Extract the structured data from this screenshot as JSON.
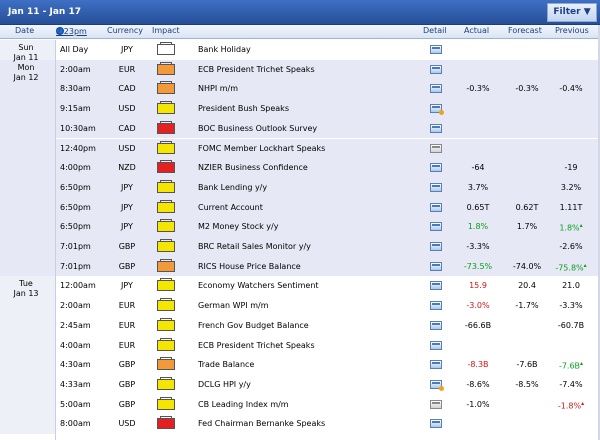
{
  "title": {
    "range": "Jan 11 - Jan 17",
    "filter_label": "Filter"
  },
  "header": {
    "date": "Date",
    "time": "2:23pm",
    "currency": "Currency",
    "impact": "Impact",
    "detail": "Detail",
    "actual": "Actual",
    "forecast": "Forecast",
    "previous": "Previous"
  },
  "days": [
    {
      "line1": "Sun",
      "line2": "Jan 11",
      "start": 0,
      "span": 1
    },
    {
      "line1": "Mon",
      "line2": "Jan 12",
      "start": 1,
      "span": 11
    },
    {
      "line1": "Tue",
      "line2": "Jan 13",
      "start": 12,
      "span": 8
    }
  ],
  "rows": [
    {
      "time": "All Day",
      "currency": "JPY",
      "impact": "none",
      "event": "Bank Holiday",
      "detail": "normal",
      "actual": "",
      "actual_color": "",
      "forecast": "",
      "previous": "",
      "previous_color": "",
      "previous_revised": false,
      "shade": false
    },
    {
      "time": "2:00am",
      "currency": "EUR",
      "impact": "medium",
      "event": "ECB President Trichet Speaks",
      "detail": "normal",
      "actual": "",
      "actual_color": "",
      "forecast": "",
      "previous": "",
      "previous_color": "",
      "previous_revised": false,
      "shade": true
    },
    {
      "time": "8:30am",
      "currency": "CAD",
      "impact": "medium",
      "event": "NHPI m/m",
      "detail": "normal",
      "actual": "-0.3%",
      "actual_color": "",
      "forecast": "-0.3%",
      "previous": "-0.4%",
      "previous_color": "",
      "previous_revised": false,
      "shade": true
    },
    {
      "time": "9:15am",
      "currency": "USD",
      "impact": "low",
      "event": "President Bush Speaks",
      "detail": "bell",
      "actual": "",
      "actual_color": "",
      "forecast": "",
      "previous": "",
      "previous_color": "",
      "previous_revised": false,
      "shade": true
    },
    {
      "time": "10:30am",
      "currency": "CAD",
      "impact": "high",
      "event": "BOC Business Outlook Survey",
      "detail": "normal",
      "actual": "",
      "actual_color": "",
      "forecast": "",
      "previous": "",
      "previous_color": "",
      "previous_revised": false,
      "shade": true
    },
    {
      "time": "12:40pm",
      "currency": "USD",
      "impact": "low",
      "event": "FOMC Member Lockhart Speaks",
      "detail": "gray",
      "actual": "",
      "actual_color": "",
      "forecast": "",
      "previous": "",
      "previous_color": "",
      "previous_revised": false,
      "shade": true
    },
    {
      "time": "4:00pm",
      "currency": "NZD",
      "impact": "high",
      "event": "NZIER Business Confidence",
      "detail": "normal",
      "actual": "-64",
      "actual_color": "",
      "forecast": "",
      "previous": "-19",
      "previous_color": "",
      "previous_revised": false,
      "shade": true
    },
    {
      "time": "6:50pm",
      "currency": "JPY",
      "impact": "low",
      "event": "Bank Lending y/y",
      "detail": "normal",
      "actual": "3.7%",
      "actual_color": "",
      "forecast": "",
      "previous": "3.2%",
      "previous_color": "",
      "previous_revised": false,
      "shade": true
    },
    {
      "time": "6:50pm",
      "currency": "JPY",
      "impact": "low",
      "event": "Current Account",
      "detail": "normal",
      "actual": "0.65T",
      "actual_color": "",
      "forecast": "0.62T",
      "previous": "1.11T",
      "previous_color": "",
      "previous_revised": false,
      "shade": true
    },
    {
      "time": "6:50pm",
      "currency": "JPY",
      "impact": "low",
      "event": "M2 Money Stock y/y",
      "detail": "normal",
      "actual": "1.8%",
      "actual_color": "up",
      "forecast": "1.7%",
      "previous": "1.8%",
      "previous_color": "up",
      "previous_revised": true,
      "shade": true
    },
    {
      "time": "7:01pm",
      "currency": "GBP",
      "impact": "low",
      "event": "BRC Retail Sales Monitor y/y",
      "detail": "normal",
      "actual": "-3.3%",
      "actual_color": "",
      "forecast": "",
      "previous": "-2.6%",
      "previous_color": "",
      "previous_revised": false,
      "shade": true
    },
    {
      "time": "7:01pm",
      "currency": "GBP",
      "impact": "medium",
      "event": "RICS House Price Balance",
      "detail": "normal",
      "actual": "-73.5%",
      "actual_color": "up",
      "forecast": "-74.0%",
      "previous": "-75.8%",
      "previous_color": "up",
      "previous_revised": true,
      "shade": true
    },
    {
      "time": "12:00am",
      "currency": "JPY",
      "impact": "low",
      "event": "Economy Watchers Sentiment",
      "detail": "normal",
      "actual": "15.9",
      "actual_color": "down",
      "forecast": "20.4",
      "previous": "21.0",
      "previous_color": "",
      "previous_revised": false,
      "shade": false
    },
    {
      "time": "2:00am",
      "currency": "EUR",
      "impact": "low",
      "event": "German WPI m/m",
      "detail": "normal",
      "actual": "-3.0%",
      "actual_color": "down",
      "forecast": "-1.7%",
      "previous": "-3.3%",
      "previous_color": "",
      "previous_revised": false,
      "shade": false
    },
    {
      "time": "2:45am",
      "currency": "EUR",
      "impact": "low",
      "event": "French Gov Budget Balance",
      "detail": "normal",
      "actual": "-66.6B",
      "actual_color": "",
      "forecast": "",
      "previous": "-60.7B",
      "previous_color": "",
      "previous_revised": false,
      "shade": false
    },
    {
      "time": "4:00am",
      "currency": "EUR",
      "impact": "low",
      "event": "ECB President Trichet Speaks",
      "detail": "normal",
      "actual": "",
      "actual_color": "",
      "forecast": "",
      "previous": "",
      "previous_color": "",
      "previous_revised": false,
      "shade": false
    },
    {
      "time": "4:30am",
      "currency": "GBP",
      "impact": "medium",
      "event": "Trade Balance",
      "detail": "normal",
      "actual": "-8.3B",
      "actual_color": "down",
      "forecast": "-7.6B",
      "previous": "-7.6B",
      "previous_color": "up",
      "previous_revised": true,
      "shade": false
    },
    {
      "time": "4:33am",
      "currency": "GBP",
      "impact": "low",
      "event": "DCLG HPI y/y",
      "detail": "bell",
      "actual": "-8.6%",
      "actual_color": "",
      "forecast": "-8.5%",
      "previous": "-7.4%",
      "previous_color": "",
      "previous_revised": false,
      "shade": false
    },
    {
      "time": "5:00am",
      "currency": "GBP",
      "impact": "low",
      "event": "CB Leading Index m/m",
      "detail": "gray",
      "actual": "-1.0%",
      "actual_color": "",
      "forecast": "",
      "previous": "-1.8%",
      "previous_color": "down",
      "previous_revised": true,
      "shade": false
    },
    {
      "time": "8:00am",
      "currency": "USD",
      "impact": "high",
      "event": "Fed Chairman Bernanke Speaks",
      "detail": "normal",
      "actual": "",
      "actual_color": "",
      "forecast": "",
      "previous": "",
      "previous_color": "",
      "previous_revised": false,
      "shade": false
    }
  ]
}
